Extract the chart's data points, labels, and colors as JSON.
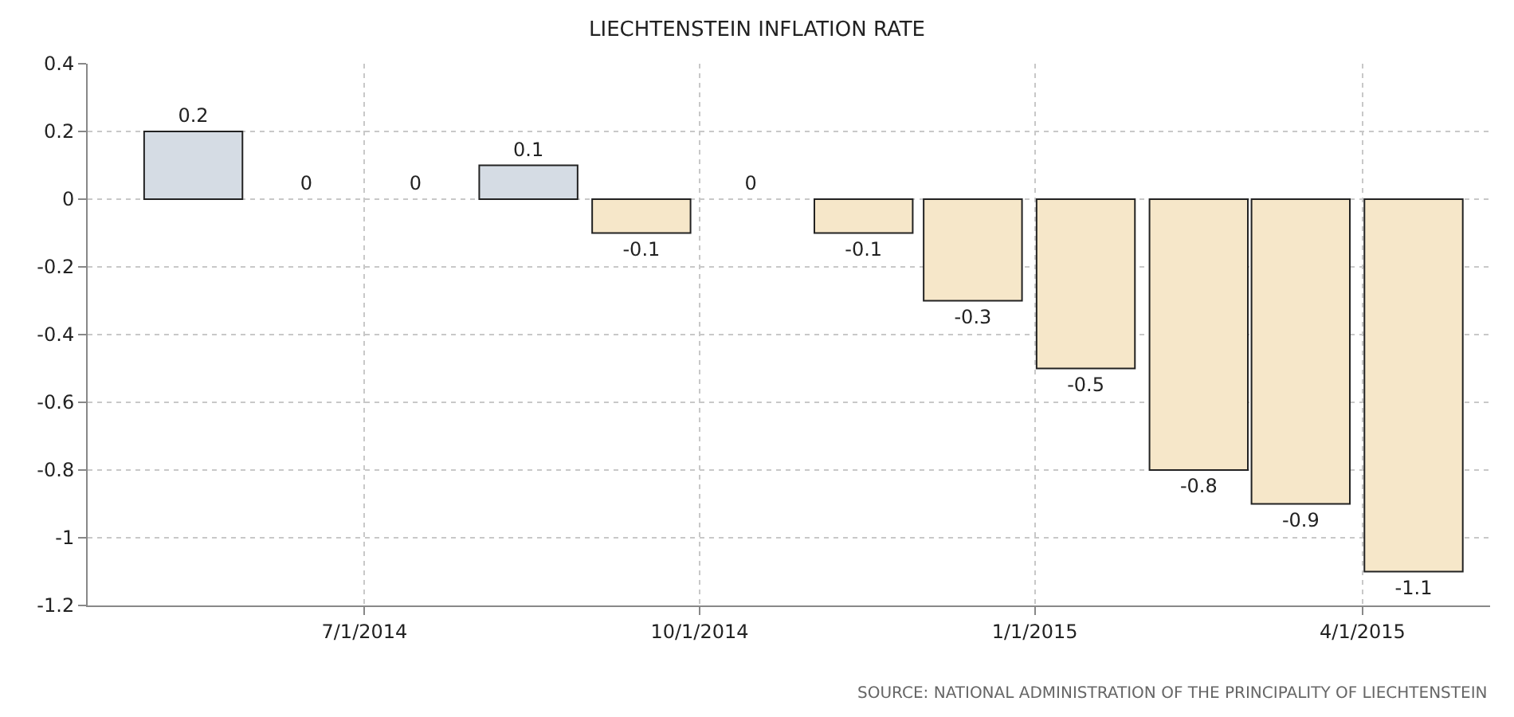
{
  "chart_data": {
    "type": "bar",
    "title": "LIECHTENSTEIN INFLATION RATE",
    "x": [
      "2014-05-15",
      "2014-06-15",
      "2014-07-15",
      "2014-08-15",
      "2014-09-15",
      "2014-10-15",
      "2014-11-15",
      "2014-12-15",
      "2015-01-15",
      "2015-02-15",
      "2015-03-15",
      "2015-04-15"
    ],
    "values": [
      0.2,
      0,
      0,
      0.1,
      -0.1,
      0,
      -0.1,
      -0.3,
      -0.5,
      -0.8,
      -0.9,
      -1.1
    ],
    "colors": [
      "#d5dce4",
      "#d5dce4",
      "#d5dce4",
      "#d5dce4",
      "#f6e7c9",
      "#f6e7c9",
      "#f6e7c9",
      "#f6e7c9",
      "#f6e7c9",
      "#f6e7c9",
      "#f6e7c9",
      "#f6e7c9"
    ],
    "data_labels": true,
    "xlim": [
      "2014-04-16",
      "2015-05-06"
    ],
    "xticks": [
      {
        "value": "2014-07-01",
        "label": "7/1/2014"
      },
      {
        "value": "2014-10-01",
        "label": "10/1/2014"
      },
      {
        "value": "2015-01-01",
        "label": "1/1/2015"
      },
      {
        "value": "2015-04-01",
        "label": "4/1/2015"
      }
    ],
    "ylim": [
      -1.2,
      0.4
    ],
    "yticks": [
      0.4,
      0.2,
      0,
      -0.2,
      -0.4,
      -0.6,
      -0.8,
      -1,
      -1.2
    ],
    "grid": true,
    "annotations": [
      "SOURCE: NATIONAL ADMINISTRATION OF THE PRINCIPALITY OF LIECHTENSTEIN"
    ]
  }
}
